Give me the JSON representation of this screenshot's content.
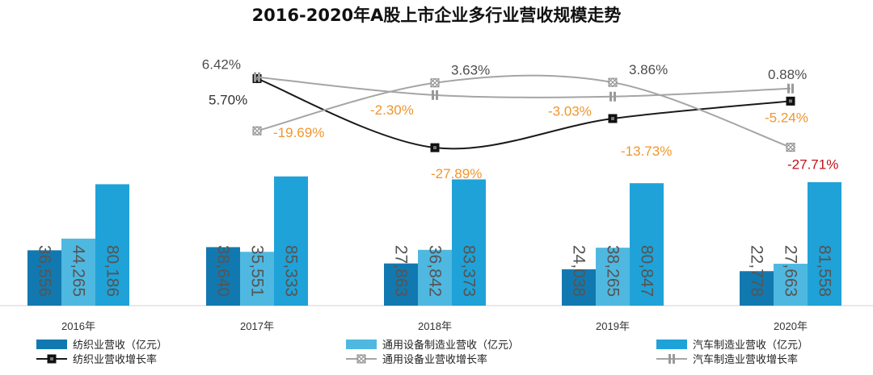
{
  "chart_data": {
    "type": "bar+line",
    "title": "2016-2020年A股上市企业多行业营收规模走势",
    "categories": [
      "2016年",
      "2017年",
      "2018年",
      "2019年",
      "2020年"
    ],
    "bar_series": [
      {
        "name": "纺织业营收（亿元）",
        "values": [
          36556,
          38640,
          27863,
          24038,
          22778
        ],
        "labels": [
          "36,556",
          "38,640",
          "27,863",
          "24,038",
          "22,778"
        ]
      },
      {
        "name": "通用设备制造业营收（亿元）",
        "values": [
          44265,
          35551,
          36842,
          38265,
          27663
        ],
        "labels": [
          "44,265",
          "35,551",
          "36,842",
          "38,265",
          "27,663"
        ]
      },
      {
        "name": "汽车制造业营收（亿元）",
        "values": [
          80186,
          85333,
          83373,
          80847,
          81558
        ],
        "labels": [
          "80,186",
          "85,333",
          "83,373",
          "80,847",
          "81,558"
        ]
      }
    ],
    "line_series": [
      {
        "name": "纺织业营收增长率",
        "x": [
          "2017年",
          "2018年",
          "2019年",
          "2020年"
        ],
        "values": [
          5.7,
          -27.89,
          -13.73,
          -5.24
        ],
        "labels": [
          "5.70%",
          "-27.89%",
          "-13.73%",
          "-5.24%"
        ]
      },
      {
        "name": "通用设备业营收增长率",
        "x": [
          "2017年",
          "2018年",
          "2019年",
          "2020年"
        ],
        "values": [
          -19.69,
          3.63,
          3.86,
          -27.71
        ],
        "labels": [
          "-19.69%",
          "3.63%",
          "3.86%",
          "-27.71%"
        ]
      },
      {
        "name": "汽车制造业营收增长率",
        "x": [
          "2017年",
          "2018年",
          "2019年",
          "2020年"
        ],
        "values": [
          6.42,
          -2.3,
          -3.03,
          0.88
        ],
        "labels": [
          "6.42%",
          "-2.30%",
          "-3.03%",
          "0.88%"
        ]
      }
    ],
    "xlabel": "",
    "ylabel": "",
    "grid": false,
    "legend_position": "bottom",
    "colors": {
      "textile_bar": "#1279b0",
      "equipment_bar": "#4fb8e0",
      "auto_bar": "#1fa2d8",
      "textile_line": "#1a1a1a",
      "equipment_line": "#a5a5a5",
      "auto_line": "#a5a5a5",
      "label_orange": "#f0962d",
      "label_red": "#c0121b",
      "label_dark": "#333333",
      "label_gray": "#4d4d4d"
    },
    "marker_icons": [
      "square-marker-icon",
      "hatched-diamond-marker-icon",
      "double-bar-marker-icon"
    ]
  }
}
